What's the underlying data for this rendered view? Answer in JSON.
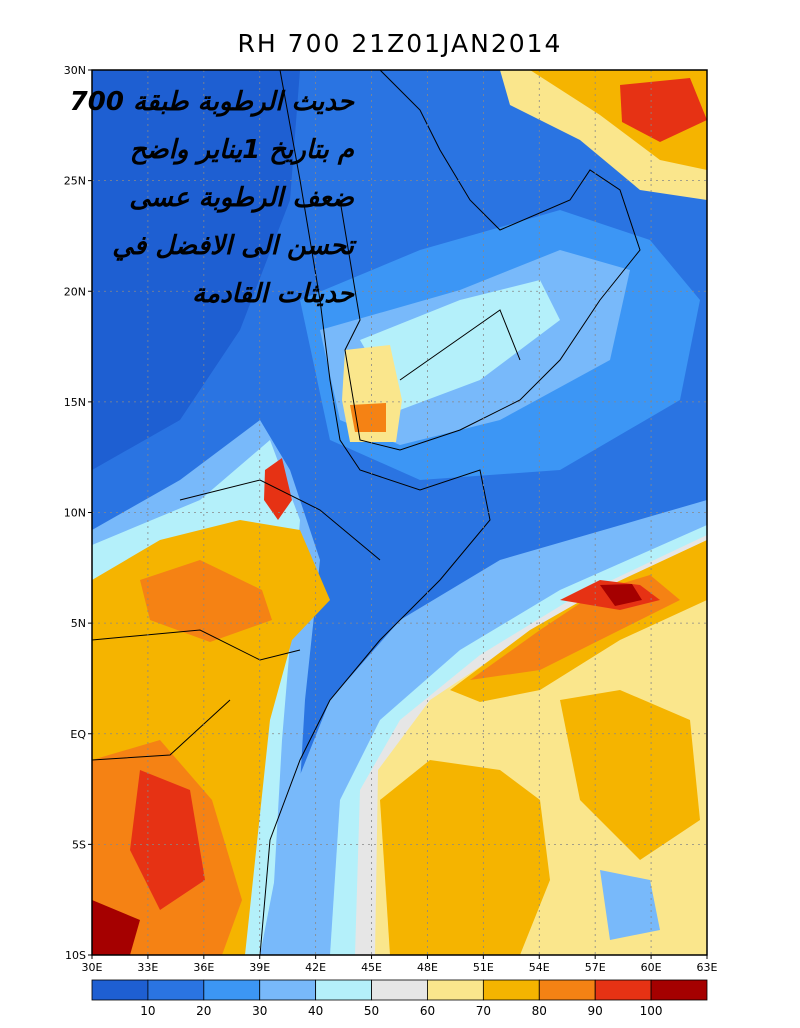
{
  "title": "RH 700 21Z01JAN2014",
  "annotation": [
    "حديث الرطوبة طبقة 700",
    "م بتاريخ 1يناير واضح",
    "ضعف الرطوبة عسى",
    "تحسن الى الافضل في",
    "حديثات القادمة"
  ],
  "lat_labels": [
    "30N",
    "25N",
    "20N",
    "15N",
    "10N",
    "5N",
    "EQ",
    "5S",
    "10S"
  ],
  "lon_labels": [
    "30E",
    "33E",
    "36E",
    "39E",
    "42E",
    "45E",
    "48E",
    "51E",
    "54E",
    "57E",
    "60E",
    "63E"
  ],
  "colorbar": {
    "colors": [
      "#1e5fd2",
      "#2a74e2",
      "#3c96f5",
      "#78b9fa",
      "#b4f0fa",
      "#e6e6e6",
      "#fae68c",
      "#f5b400",
      "#f58214",
      "#e63214",
      "#a50000"
    ],
    "labels": [
      "10",
      "20",
      "30",
      "40",
      "50",
      "60",
      "70",
      "80",
      "90",
      "100"
    ]
  }
}
